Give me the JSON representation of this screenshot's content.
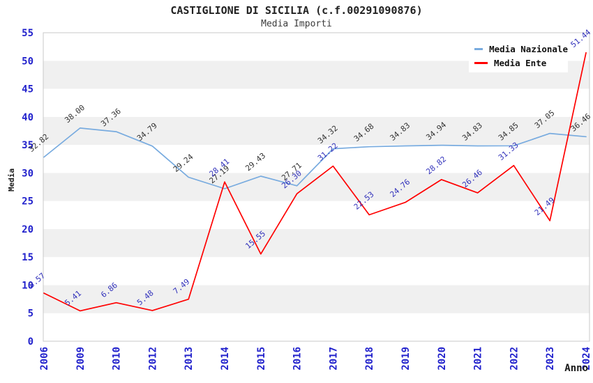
{
  "chart_data": {
    "type": "line",
    "title": "CASTIGLIONE DI SICILIA (c.f.00291090876)",
    "subtitle": "Media Importi",
    "xlabel": "Anno",
    "ylabel": "Media",
    "x": [
      "2006",
      "2009",
      "2010",
      "2012",
      "2013",
      "2014",
      "2015",
      "2016",
      "2017",
      "2018",
      "2019",
      "2020",
      "2021",
      "2022",
      "2023",
      "2024"
    ],
    "series": [
      {
        "name": "Media Nazionale",
        "color": "#78ABDF",
        "label_color": "#333333",
        "values": [
          32.82,
          38.0,
          37.36,
          34.79,
          29.24,
          27.19,
          29.43,
          27.71,
          34.32,
          34.68,
          34.83,
          34.94,
          34.83,
          34.85,
          37.05,
          36.46
        ]
      },
      {
        "name": "Media Ente",
        "color": "#FF0000",
        "label_color": "#3232BB",
        "values": [
          8.57,
          5.41,
          6.86,
          5.48,
          7.49,
          28.41,
          15.55,
          26.3,
          31.22,
          22.53,
          24.76,
          28.82,
          26.46,
          31.33,
          21.49,
          51.44
        ]
      }
    ],
    "ylim": [
      0,
      55
    ],
    "ytick_step": 5,
    "yticks": [
      0,
      5,
      10,
      15,
      20,
      25,
      30,
      35,
      40,
      45,
      50,
      55
    ],
    "grid": "horizontal-bands",
    "band_colors": [
      "#FFFFFF",
      "#F0F0F0"
    ],
    "plot_border_color": "#C9C9C9",
    "tick_label_color": "#2222CC",
    "axis_title_color": "#1a1a1a",
    "legend_position": "top-right"
  }
}
